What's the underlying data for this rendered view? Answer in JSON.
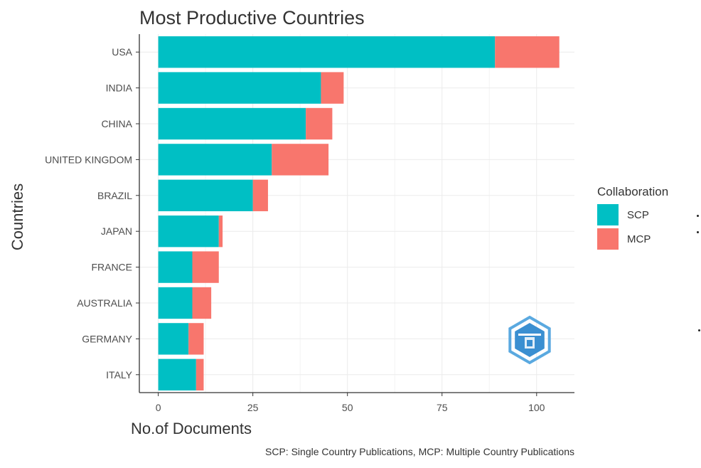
{
  "chart_data": {
    "type": "bar",
    "orientation": "horizontal",
    "stacked": true,
    "title": "Most Productive Countries",
    "xlabel": "No.of Documents",
    "ylabel": "Countries",
    "caption": "SCP: Single Country Publications, MCP: Multiple Country Publications",
    "categories": [
      "USA",
      "INDIA",
      "CHINA",
      "UNITED KINGDOM",
      "BRAZIL",
      "JAPAN",
      "FRANCE",
      "AUSTRALIA",
      "GERMANY",
      "ITALY"
    ],
    "series": [
      {
        "name": "SCP",
        "color": "#00BFC4",
        "values": [
          89,
          43,
          39,
          30,
          25,
          16,
          9,
          9,
          8,
          10
        ]
      },
      {
        "name": "MCP",
        "color": "#F8766D",
        "values": [
          17,
          6,
          7,
          15,
          4,
          1,
          7,
          5,
          4,
          2
        ]
      }
    ],
    "xlim": [
      -5,
      110
    ],
    "xticks": [
      "0",
      "25",
      "50",
      "75",
      "100"
    ],
    "xtick_values": [
      0,
      25,
      50,
      75,
      100
    ],
    "legend": {
      "title": "Collaboration",
      "placement": "right"
    },
    "grid": true
  },
  "logo": {
    "icon": "hexagon-logo-icon",
    "color": "#3a8fd1"
  }
}
